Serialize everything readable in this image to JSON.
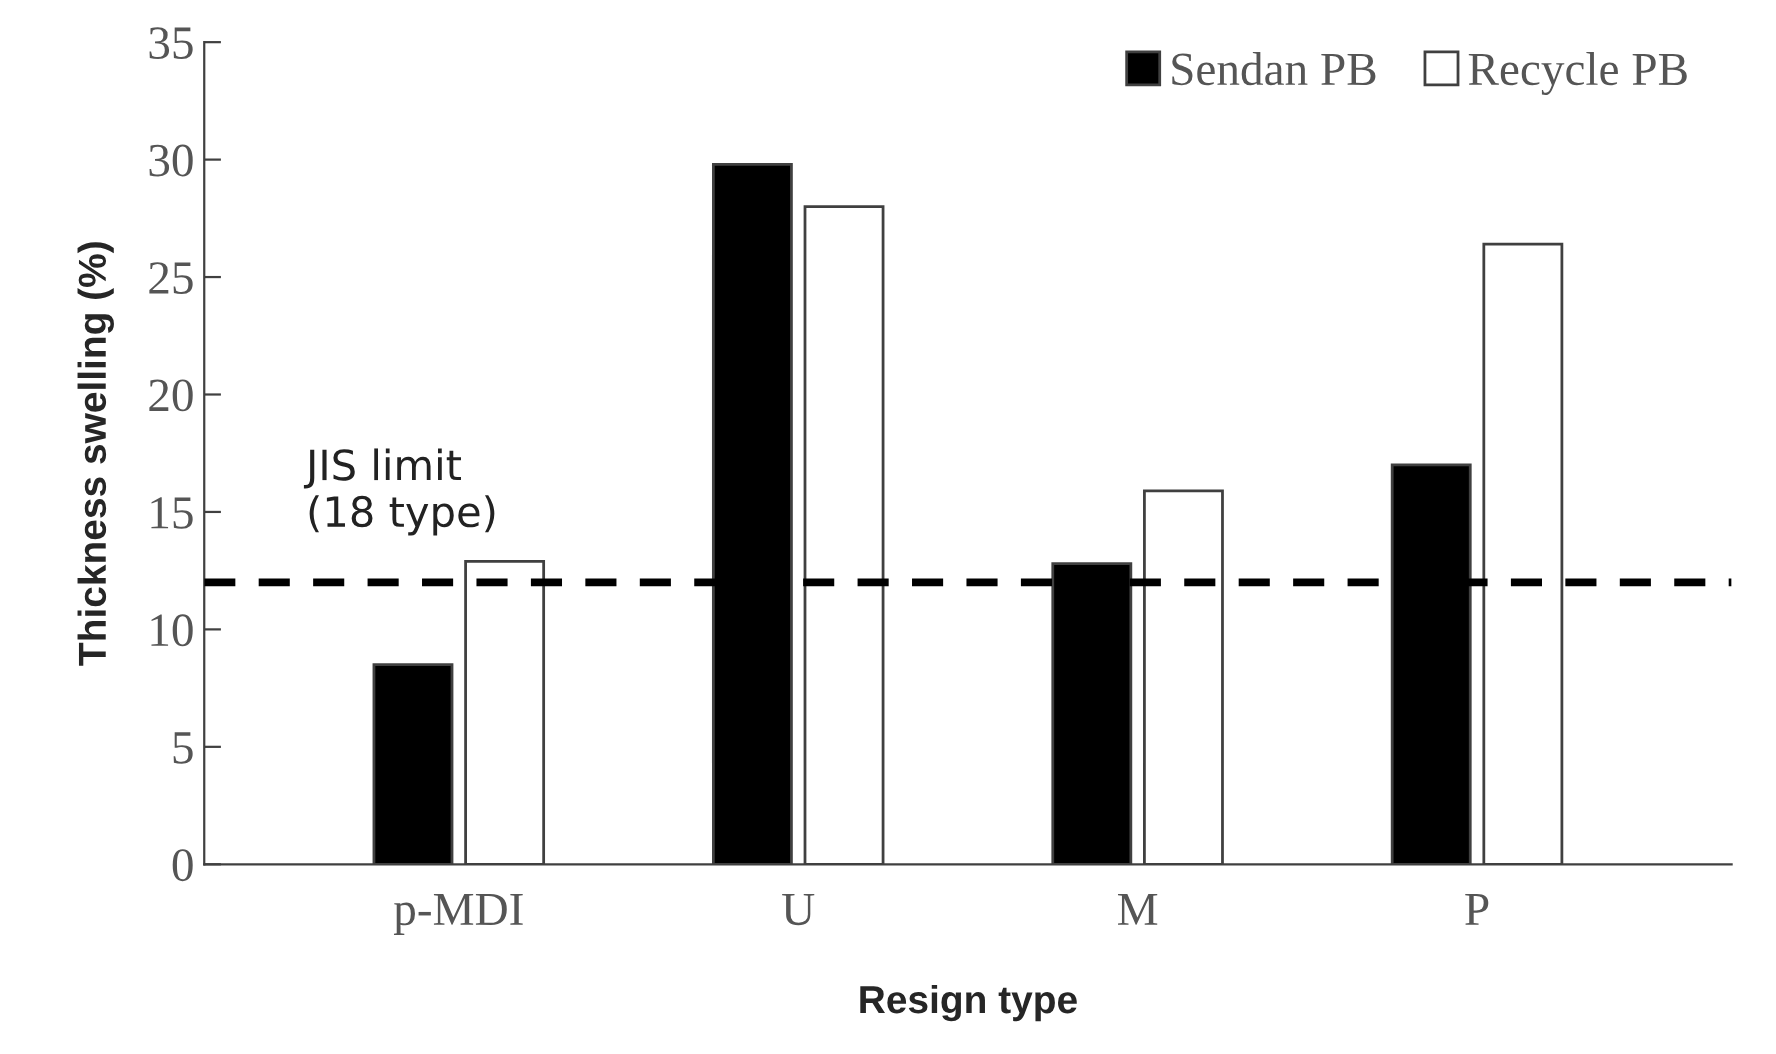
{
  "chart_data": {
    "type": "bar",
    "xlabel": "Resign type",
    "ylabel": "Thickness swelling (%)",
    "categories": [
      "p-MDI",
      "U",
      "M",
      "P"
    ],
    "series": [
      {
        "name": "Sendan PB",
        "color": "#000000",
        "values": [
          8.5,
          29.8,
          12.8,
          17.0
        ]
      },
      {
        "name": "Recycle PB",
        "color": "#ffffff",
        "values": [
          12.9,
          28.0,
          15.9,
          26.4
        ]
      }
    ],
    "ylim": [
      0,
      35
    ],
    "yticks": [
      0,
      5,
      10,
      15,
      20,
      25,
      30,
      35
    ],
    "ref_lines": [
      {
        "axis": "y",
        "value": 12,
        "label": "JIS limit\n(18 type)",
        "color": "#000000",
        "line_style": "dashed"
      }
    ],
    "legend": "top right",
    "grid": false
  }
}
